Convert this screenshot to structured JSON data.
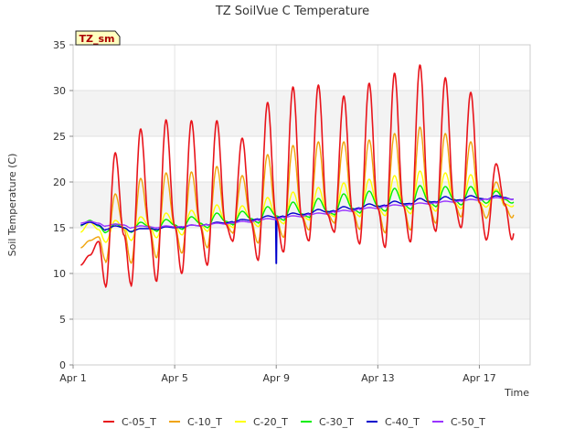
{
  "chart_data": {
    "type": "line",
    "title": "TZ SoilVue C Temperature",
    "xlabel": "Time",
    "ylabel": "Soil Temperature (C)",
    "ylim": [
      0,
      35
    ],
    "xlim": [
      "2024-04-01",
      "2024-04-19"
    ],
    "y_ticks": [
      "0",
      "5",
      "10",
      "15",
      "20",
      "25",
      "30",
      "35"
    ],
    "x_ticks": [
      {
        "date": "2024-04-01",
        "label": "Apr 1"
      },
      {
        "date": "2024-04-05",
        "label": "Apr 5"
      },
      {
        "date": "2024-04-09",
        "label": "Apr 9"
      },
      {
        "date": "2024-04-13",
        "label": "Apr 13"
      },
      {
        "date": "2024-04-17",
        "label": "Apr 17"
      }
    ],
    "grid": true,
    "legend_position": "bottom",
    "annotation": "TZ_sm",
    "series": [
      {
        "name": "C-05_T",
        "color": "#e8141b",
        "line_width": 1.6,
        "base": [
          11.3,
          13.5,
          14.2,
          15.0,
          15.2,
          15.2,
          15.4,
          15.7,
          16.0,
          16.2,
          16.5,
          16.8,
          17.1,
          17.4,
          17.6,
          17.8,
          17.8,
          17.6
        ],
        "max": [
          12.0,
          23.2,
          25.8,
          26.8,
          26.7,
          26.7,
          24.8,
          28.7,
          30.4,
          30.6,
          29.4,
          30.8,
          31.9,
          32.8,
          31.4,
          29.8,
          22.0
        ],
        "min": [
          10.9,
          8.5,
          8.6,
          9.1,
          10.0,
          10.9,
          13.5,
          11.4,
          12.3,
          13.5,
          14.5,
          13.2,
          12.8,
          13.4,
          14.6,
          15.0,
          13.7
        ]
      },
      {
        "name": "C-10_T",
        "color": "#f0a30a",
        "line_width": 1.4,
        "base": [
          13.5,
          14.0,
          14.8,
          15.1,
          15.2,
          15.3,
          15.5,
          15.8,
          16.0,
          16.3,
          16.6,
          16.9,
          17.1,
          17.4,
          17.6,
          17.7,
          17.7,
          17.4
        ],
        "max": [
          13.6,
          18.7,
          20.4,
          21.0,
          21.1,
          21.7,
          20.7,
          23.0,
          24.0,
          24.4,
          24.4,
          24.6,
          25.3,
          26.0,
          25.3,
          24.4,
          20.0
        ],
        "min": [
          12.8,
          11.2,
          11.1,
          11.7,
          12.2,
          12.8,
          14.4,
          13.3,
          13.9,
          14.7,
          15.5,
          14.8,
          14.4,
          14.7,
          15.5,
          16.2,
          16.1
        ]
      },
      {
        "name": "C-20_T",
        "color": "#ffff00",
        "line_width": 1.4,
        "base": [
          15.2,
          14.8,
          15.0,
          15.2,
          15.3,
          15.4,
          15.6,
          15.9,
          16.1,
          16.4,
          16.7,
          16.9,
          17.2,
          17.4,
          17.7,
          17.8,
          17.8,
          17.6
        ],
        "max": [
          15.6,
          15.8,
          16.2,
          16.6,
          16.9,
          17.5,
          17.4,
          18.3,
          18.9,
          19.4,
          19.9,
          20.3,
          20.7,
          21.2,
          21.0,
          20.8,
          19.2
        ],
        "min": [
          14.5,
          13.4,
          13.6,
          13.9,
          14.2,
          14.6,
          15.0,
          15.1,
          15.4,
          15.8,
          16.2,
          16.2,
          16.3,
          16.5,
          16.8,
          17.1,
          17.3
        ]
      },
      {
        "name": "C-30_T",
        "color": "#00ee00",
        "line_width": 1.4,
        "base": [
          15.7,
          15.2,
          15.0,
          15.1,
          15.3,
          15.5,
          15.7,
          16.0,
          16.3,
          16.5,
          16.8,
          17.1,
          17.4,
          17.6,
          17.9,
          18.1,
          18.2,
          18.1
        ],
        "max": [
          15.8,
          15.4,
          15.6,
          15.9,
          16.2,
          16.6,
          16.8,
          17.3,
          17.8,
          18.2,
          18.7,
          19.0,
          19.3,
          19.6,
          19.5,
          19.5,
          19.0
        ],
        "min": [
          15.2,
          14.5,
          14.5,
          14.6,
          14.8,
          15.0,
          15.3,
          15.5,
          15.8,
          16.1,
          16.4,
          16.6,
          16.8,
          17.0,
          17.3,
          17.5,
          17.7
        ]
      },
      {
        "name": "C-40_T",
        "color": "#0000cc",
        "line_width": 1.4,
        "base": [
          15.7,
          15.3,
          15.0,
          14.9,
          15.0,
          15.2,
          15.5,
          15.8,
          16.1,
          16.4,
          16.7,
          17.0,
          17.3,
          17.6,
          17.8,
          18.0,
          18.2,
          18.3
        ],
        "max": [
          15.6,
          15.2,
          14.9,
          15.1,
          15.3,
          15.6,
          15.9,
          16.3,
          16.6,
          17.0,
          17.3,
          17.6,
          17.9,
          18.2,
          18.4,
          18.5,
          18.5
        ],
        "min": [
          15.3,
          14.8,
          14.6,
          14.8,
          15.0,
          15.3,
          15.6,
          15.9,
          16.2,
          16.5,
          16.8,
          17.1,
          17.4,
          17.6,
          17.8,
          18.0,
          18.1
        ],
        "spike": {
          "date": "2024-04-09",
          "min": 11.1
        }
      },
      {
        "name": "C-50_T",
        "color": "#9933ff",
        "line_width": 1.4,
        "base": [
          15.8,
          15.5,
          15.3,
          15.1,
          15.1,
          15.2,
          15.4,
          15.6,
          15.9,
          16.2,
          16.5,
          16.8,
          17.1,
          17.4,
          17.6,
          17.8,
          18.0,
          18.2
        ],
        "max": [
          15.7,
          15.4,
          15.2,
          15.2,
          15.3,
          15.5,
          15.7,
          16.0,
          16.3,
          16.6,
          16.9,
          17.2,
          17.5,
          17.7,
          17.9,
          18.1,
          18.3
        ],
        "min": [
          15.5,
          15.2,
          15.0,
          15.0,
          15.1,
          15.3,
          15.5,
          15.8,
          16.1,
          16.4,
          16.7,
          17.0,
          17.3,
          17.5,
          17.7,
          17.9,
          18.1
        ]
      }
    ]
  }
}
